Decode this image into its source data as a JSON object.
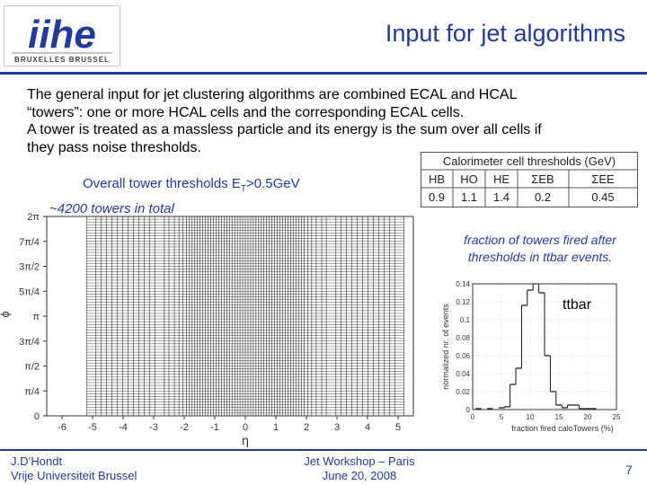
{
  "header": {
    "title": "Input for jet algorithms",
    "logo": {
      "text": "iihe",
      "subtext": "BRUXELLES BRUSSEL",
      "color": "#1f3aa3"
    }
  },
  "body": {
    "paragraph_lines": [
      "The general input for jet clustering algorithms are combined ECAL and HCAL",
      "“towers”: one or more HCAL cells and the corresponding ECAL cells.",
      "A tower is treated as a massless particle and its energy is the sum over all cells if",
      "they pass noise thresholds."
    ],
    "threshold_label": {
      "prefix": "Overall tower thresholds E",
      "sub": "T",
      "suffix": ">0.5GeV"
    },
    "towers_note": "~4200 towers in total",
    "fraction_note": "fraction of towers fired after thresholds in ttbar events.",
    "ttbar_label": "ttbar"
  },
  "cal_table": {
    "title": "Calorimeter cell thresholds (GeV)",
    "headers": [
      "HB",
      "HO",
      "HE",
      "ΣEB",
      "ΣEE"
    ],
    "values": [
      "0.9",
      "1.1",
      "1.4",
      "0.2",
      "0.45"
    ]
  },
  "chart_data": [
    {
      "type": "scatter",
      "description_free": true,
      "xlabel": "η",
      "ylabel": "ϕ",
      "xlim": [
        -6.5,
        5.5
      ],
      "ylim": [
        0,
        6.2832
      ],
      "x_ticks": [
        "-6",
        "-5",
        "-4",
        "-3",
        "-2",
        "-1",
        "0",
        "1",
        "2",
        "3",
        "4",
        "5"
      ],
      "y_ticks": [
        "0",
        "π/4",
        "π/2",
        "3π/4",
        "π",
        "5π/4",
        "3π/2",
        "7π/4",
        "2π"
      ],
      "eta_boundaries": [
        -5.191,
        -4.889,
        -4.716,
        -4.538,
        -4.363,
        -4.191,
        -4.013,
        -3.839,
        -3.664,
        -3.489,
        -3.314,
        -3.139,
        -2.964,
        -2.65,
        -2.5,
        -2.322,
        -2.172,
        -2.043,
        -1.93,
        -1.83,
        -1.74,
        -1.653,
        -1.566,
        -1.479,
        -1.392,
        -1.305,
        -1.218,
        -1.131,
        -1.044,
        -0.957,
        -0.87,
        -0.783,
        -0.696,
        -0.609,
        -0.522,
        -0.435,
        -0.348,
        -0.261,
        -0.174,
        -0.087,
        0,
        0.087,
        0.174,
        0.261,
        0.348,
        0.435,
        0.522,
        0.609,
        0.696,
        0.783,
        0.87,
        0.957,
        1.044,
        1.131,
        1.218,
        1.305,
        1.392,
        1.479,
        1.566,
        1.653,
        1.74,
        1.83,
        1.93,
        2.043,
        2.172,
        2.322,
        2.5,
        2.65,
        2.964,
        3.139,
        3.314,
        3.489,
        3.664,
        3.839,
        4.013,
        4.191,
        4.363,
        4.538,
        4.716,
        4.889,
        5.191
      ],
      "phi_divisions": 72
    },
    {
      "type": "bar",
      "xlabel": "fraction fired caloTowers  (%)",
      "ylabel": "normalized nr. of events",
      "xlim": [
        0,
        25
      ],
      "ylim": [
        0,
        0.14
      ],
      "x_ticks": [
        "0",
        "5",
        "10",
        "15",
        "20",
        "25"
      ],
      "y_ticks": [
        "0",
        "0.02",
        "0.04",
        "0.06",
        "0.08",
        "0.1",
        "0.12",
        "0.14"
      ],
      "x": [
        1,
        3,
        5,
        6,
        7,
        8,
        9,
        10,
        11,
        12,
        13,
        14,
        15,
        16,
        17,
        18,
        19,
        20,
        21
      ],
      "values": [
        0.001,
        0.001,
        0.002,
        0.003,
        0.028,
        0.046,
        0.116,
        0.133,
        0.14,
        0.13,
        0.06,
        0.02,
        0.005,
        0.002,
        0.005,
        0.005,
        0.001,
        0.001,
        0.001
      ]
    }
  ],
  "footer": {
    "author_lines": [
      "J.D’Hondt",
      "Vrije Universiteit Brussel"
    ],
    "event_lines": [
      "Jet Workshop – Paris",
      "June 20, 2008"
    ],
    "page_number": "7"
  }
}
